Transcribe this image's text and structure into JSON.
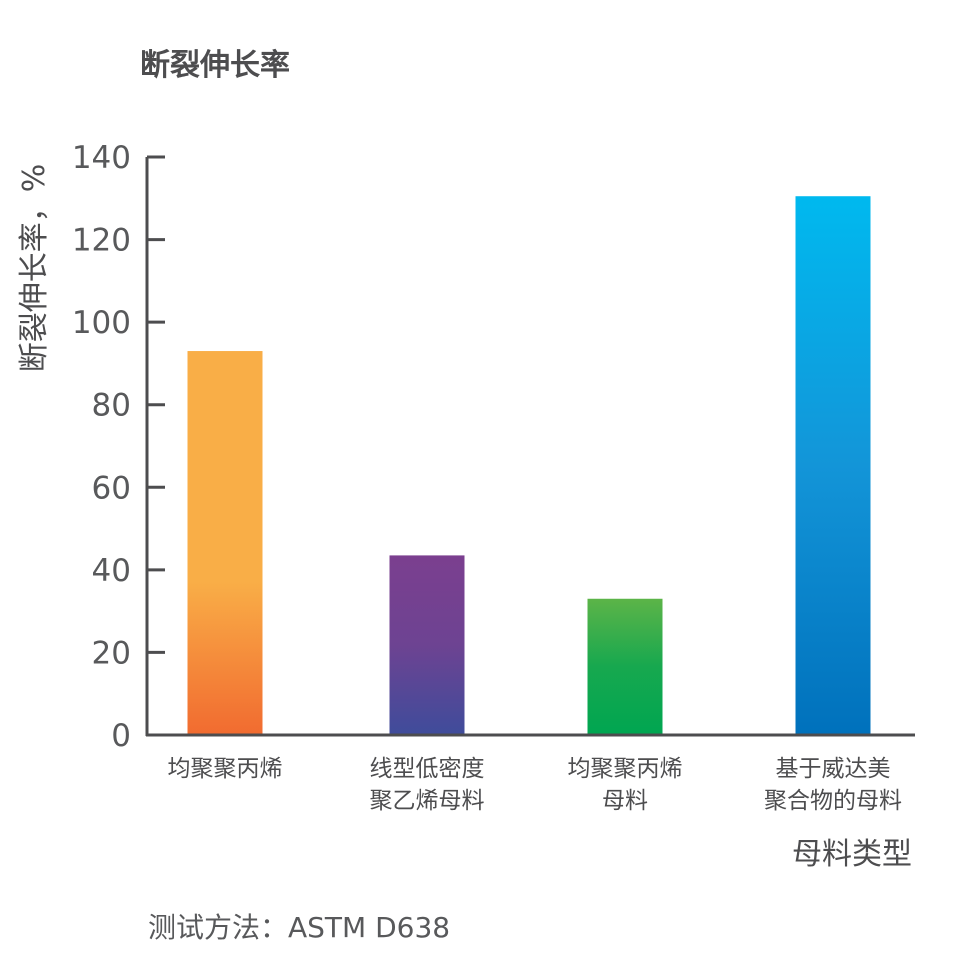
{
  "chart_data": {
    "type": "bar",
    "title": "断裂伸长率",
    "ylabel": "断裂伸长率，%",
    "xlabel": "母料类型",
    "ylim": [
      0,
      140
    ],
    "yticks": [
      0,
      20,
      40,
      60,
      80,
      100,
      120,
      140
    ],
    "categories": [
      [
        "均聚聚丙烯"
      ],
      [
        "线型低密度",
        "聚乙烯母料"
      ],
      [
        "均聚聚丙烯",
        "母料"
      ],
      [
        "基于威达美",
        "聚合物的母料"
      ]
    ],
    "values": [
      93,
      43.5,
      33,
      130.5
    ],
    "bar_gradients": [
      [
        "#f9ae47",
        "#f9ae47",
        "#f16b30"
      ],
      [
        "#7b3f8f",
        "#6d4392",
        "#3f4c9b"
      ],
      [
        "#5cb448",
        "#17a84f",
        "#00a651"
      ],
      [
        "#00b9ef",
        "#1395d8",
        "#0071bc"
      ]
    ],
    "grid": false,
    "footnote": "测试方法：ASTM D638"
  }
}
